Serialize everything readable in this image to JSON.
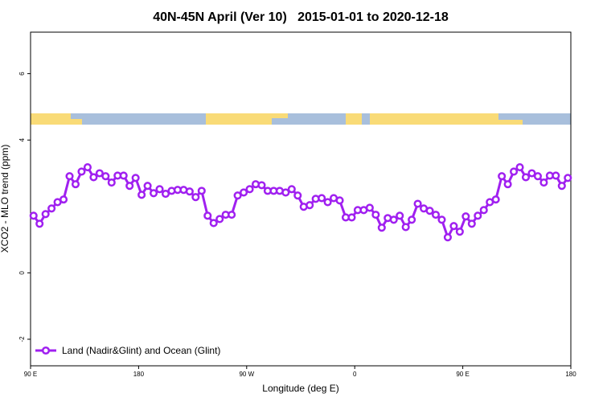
{
  "chart_data": {
    "type": "line",
    "title": "40N-45N April (Ver 10)   2015-01-01 to 2020-12-18",
    "x_label": "Longitude (deg E)",
    "y_label": "XCO2 - MLO trend (ppm)",
    "x": [
      92.5,
      97.5,
      102.5,
      107.5,
      112.5,
      117.5,
      122.5,
      127.5,
      132.5,
      137.5,
      142.5,
      147.5,
      152.5,
      157.5,
      162.5,
      167.5,
      172.5,
      177.5,
      182.5,
      187.5,
      192.5,
      197.5,
      202.5,
      207.5,
      212.5,
      217.5,
      222.5,
      227.5,
      232.5,
      237.5,
      242.5,
      247.5,
      252.5,
      257.5,
      262.5,
      267.5,
      272.5,
      277.5,
      282.5,
      287.5,
      292.5,
      297.5,
      302.5,
      307.5,
      312.5,
      317.5,
      322.5,
      327.5,
      332.5,
      337.5,
      342.5,
      347.5,
      352.5,
      357.5,
      362.5,
      367.5,
      372.5,
      377.5,
      382.5,
      387.5,
      392.5,
      397.5,
      402.5,
      407.5,
      412.5,
      417.5,
      422.5,
      427.5,
      432.5,
      437.5,
      442.5,
      447.5,
      452.5,
      457.5,
      462.5,
      467.5,
      472.5,
      477.5,
      482.5,
      487.5,
      492.5,
      497.5,
      502.5,
      507.5,
      512.5,
      517.5,
      522.5,
      527.5,
      532.5,
      537.5
    ],
    "series": [
      {
        "name": "Land (Nadir&Glint) and Ocean (Glint)",
        "color": "#a020f0",
        "values": [
          1.72,
          1.48,
          1.77,
          1.94,
          2.13,
          2.21,
          2.91,
          2.67,
          3.05,
          3.18,
          2.88,
          3.0,
          2.91,
          2.72,
          2.93,
          2.93,
          2.62,
          2.86,
          2.35,
          2.62,
          2.4,
          2.52,
          2.38,
          2.47,
          2.5,
          2.5,
          2.45,
          2.28,
          2.47,
          1.72,
          1.5,
          1.62,
          1.75,
          1.75,
          2.33,
          2.42,
          2.52,
          2.67,
          2.64,
          2.47,
          2.47,
          2.47,
          2.42,
          2.52,
          2.33,
          1.99,
          2.04,
          2.23,
          2.25,
          2.13,
          2.25,
          2.18,
          1.67,
          1.67,
          1.89,
          1.89,
          1.96,
          1.75,
          1.36,
          1.65,
          1.6,
          1.72,
          1.38,
          1.6,
          2.08,
          1.94,
          1.87,
          1.75,
          1.6,
          1.07,
          1.41,
          1.24,
          1.7,
          1.48,
          1.72,
          1.89,
          2.13,
          2.21,
          2.91,
          2.67,
          3.05,
          3.18,
          2.88,
          3.0,
          2.91,
          2.72,
          2.93,
          2.93,
          2.62,
          2.86
        ]
      }
    ],
    "xlim": [
      90,
      540
    ],
    "xticks": [
      {
        "value": 90,
        "label": "90 E"
      },
      180,
      {
        "value": 270,
        "label": "90 W"
      },
      {
        "value": 360,
        "label": "0"
      },
      {
        "value": 450,
        "label": "90 E"
      },
      {
        "value": 540,
        "label": "180"
      }
    ],
    "ylim": [
      -2.8,
      7.25
    ],
    "yticks": [
      -2,
      0,
      4,
      6
    ],
    "legend": "bottom-left"
  }
}
